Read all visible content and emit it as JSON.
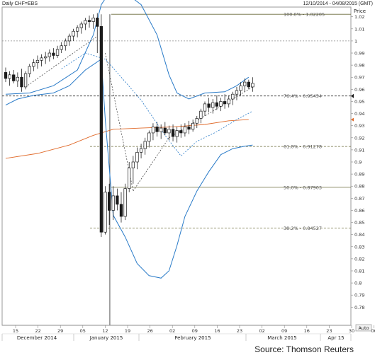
{
  "header": {
    "instrument": "Daily CHF=EBS",
    "range": "12/10/2014 - 04/08/2015 (GMT)"
  },
  "source": "Source: Thomson Reuters",
  "chart_data": {
    "type": "candlestick",
    "ylabel": "Price",
    "ylim": [
      0.765,
      1.028
    ],
    "y_ticks": [
      1.02,
      1.01,
      1.0,
      0.99,
      0.98,
      0.97,
      0.96,
      0.95,
      0.94,
      0.93,
      0.92,
      0.91,
      0.9,
      0.89,
      0.88,
      0.87,
      0.86,
      0.85,
      0.84,
      0.83,
      0.82,
      0.81,
      0.8,
      0.79,
      0.78
    ],
    "y_tick_labels": [
      "1.02",
      "1.01",
      "1",
      "0.99",
      "0.98",
      "0.97",
      "0.96",
      "0.95",
      "0.94",
      "0.93",
      "0.92",
      "0.91",
      "0.9",
      "0.89",
      "0.88",
      "0.87",
      "0.86",
      "0.85",
      "0.84",
      "0.83",
      "0.82",
      "0.81",
      "0.8",
      "0.79",
      "0.78"
    ],
    "day_ticks": [
      "15",
      "22",
      "29",
      "05",
      "12",
      "19",
      "26",
      "02",
      "09",
      "16",
      "23",
      "02",
      "09",
      "16",
      "23",
      "30",
      "06"
    ],
    "months": [
      "December 2014",
      "January 2015",
      "February 2015",
      "March 2015",
      "Apr 15"
    ],
    "auto_label": "Auto",
    "fib_levels": [
      {
        "label": "100.0% - 1.02205",
        "value": 1.02205
      },
      {
        "label": "76.4% - 0.95454",
        "value": 0.95454
      },
      {
        "label": "61.8% - 0.91278",
        "value": 0.91278
      },
      {
        "label": "50.0% - 0.87903",
        "value": 0.87903
      },
      {
        "label": "38.2% - 0.84527",
        "value": 0.84527
      }
    ],
    "dotted_reference": {
      "value": 1.0
    },
    "current_price": {
      "value": 0.9545
    },
    "ohlc": [
      {
        "o": 0.974,
        "h": 0.978,
        "l": 0.966,
        "c": 0.969
      },
      {
        "o": 0.969,
        "h": 0.975,
        "l": 0.963,
        "c": 0.972
      },
      {
        "o": 0.972,
        "h": 0.976,
        "l": 0.965,
        "c": 0.967
      },
      {
        "o": 0.967,
        "h": 0.974,
        "l": 0.962,
        "c": 0.97
      },
      {
        "o": 0.97,
        "h": 0.977,
        "l": 0.958,
        "c": 0.962
      },
      {
        "o": 0.962,
        "h": 0.975,
        "l": 0.96,
        "c": 0.973
      },
      {
        "o": 0.973,
        "h": 0.981,
        "l": 0.97,
        "c": 0.979
      },
      {
        "o": 0.979,
        "h": 0.985,
        "l": 0.975,
        "c": 0.982
      },
      {
        "o": 0.982,
        "h": 0.988,
        "l": 0.977,
        "c": 0.984
      },
      {
        "o": 0.984,
        "h": 0.989,
        "l": 0.979,
        "c": 0.986
      },
      {
        "o": 0.986,
        "h": 0.991,
        "l": 0.981,
        "c": 0.987
      },
      {
        "o": 0.987,
        "h": 0.993,
        "l": 0.983,
        "c": 0.99
      },
      {
        "o": 0.99,
        "h": 0.994,
        "l": 0.985,
        "c": 0.988
      },
      {
        "o": 0.988,
        "h": 0.996,
        "l": 0.986,
        "c": 0.993
      },
      {
        "o": 0.993,
        "h": 0.999,
        "l": 0.99,
        "c": 0.996
      },
      {
        "o": 0.996,
        "h": 1.002,
        "l": 0.992,
        "c": 1.0
      },
      {
        "o": 1.0,
        "h": 1.006,
        "l": 0.996,
        "c": 1.004
      },
      {
        "o": 1.004,
        "h": 1.01,
        "l": 1.0,
        "c": 1.008
      },
      {
        "o": 1.008,
        "h": 1.013,
        "l": 1.003,
        "c": 1.011
      },
      {
        "o": 1.011,
        "h": 1.016,
        "l": 1.006,
        "c": 1.014
      },
      {
        "o": 1.014,
        "h": 1.019,
        "l": 1.009,
        "c": 1.017
      },
      {
        "o": 1.017,
        "h": 1.021,
        "l": 1.011,
        "c": 1.016
      },
      {
        "o": 1.016,
        "h": 1.022,
        "l": 1.01,
        "c": 1.019
      },
      {
        "o": 1.019,
        "h": 1.023,
        "l": 0.99,
        "c": 1.012
      },
      {
        "o": 1.012,
        "h": 1.022,
        "l": 0.838,
        "c": 0.842
      },
      {
        "o": 0.842,
        "h": 0.88,
        "l": 0.84,
        "c": 0.875
      },
      {
        "o": 0.875,
        "h": 0.882,
        "l": 0.848,
        "c": 0.86
      },
      {
        "o": 0.86,
        "h": 0.88,
        "l": 0.852,
        "c": 0.872
      },
      {
        "o": 0.872,
        "h": 0.878,
        "l": 0.86,
        "c": 0.865
      },
      {
        "o": 0.865,
        "h": 0.875,
        "l": 0.85,
        "c": 0.855
      },
      {
        "o": 0.855,
        "h": 0.882,
        "l": 0.852,
        "c": 0.878
      },
      {
        "o": 0.878,
        "h": 0.9,
        "l": 0.875,
        "c": 0.895
      },
      {
        "o": 0.895,
        "h": 0.905,
        "l": 0.882,
        "c": 0.9
      },
      {
        "o": 0.9,
        "h": 0.912,
        "l": 0.894,
        "c": 0.908
      },
      {
        "o": 0.908,
        "h": 0.915,
        "l": 0.903,
        "c": 0.911
      },
      {
        "o": 0.911,
        "h": 0.92,
        "l": 0.906,
        "c": 0.917
      },
      {
        "o": 0.917,
        "h": 0.926,
        "l": 0.912,
        "c": 0.924
      },
      {
        "o": 0.924,
        "h": 0.932,
        "l": 0.918,
        "c": 0.929
      },
      {
        "o": 0.929,
        "h": 0.933,
        "l": 0.921,
        "c": 0.925
      },
      {
        "o": 0.925,
        "h": 0.931,
        "l": 0.919,
        "c": 0.928
      },
      {
        "o": 0.928,
        "h": 0.933,
        "l": 0.922,
        "c": 0.924
      },
      {
        "o": 0.924,
        "h": 0.93,
        "l": 0.918,
        "c": 0.927
      },
      {
        "o": 0.927,
        "h": 0.931,
        "l": 0.917,
        "c": 0.921
      },
      {
        "o": 0.921,
        "h": 0.929,
        "l": 0.916,
        "c": 0.926
      },
      {
        "o": 0.926,
        "h": 0.931,
        "l": 0.92,
        "c": 0.924
      },
      {
        "o": 0.924,
        "h": 0.932,
        "l": 0.921,
        "c": 0.929
      },
      {
        "o": 0.929,
        "h": 0.934,
        "l": 0.923,
        "c": 0.927
      },
      {
        "o": 0.927,
        "h": 0.935,
        "l": 0.925,
        "c": 0.932
      },
      {
        "o": 0.932,
        "h": 0.938,
        "l": 0.928,
        "c": 0.936
      },
      {
        "o": 0.936,
        "h": 0.944,
        "l": 0.932,
        "c": 0.942
      },
      {
        "o": 0.942,
        "h": 0.95,
        "l": 0.938,
        "c": 0.948
      },
      {
        "o": 0.948,
        "h": 0.953,
        "l": 0.941,
        "c": 0.945
      },
      {
        "o": 0.945,
        "h": 0.952,
        "l": 0.94,
        "c": 0.949
      },
      {
        "o": 0.949,
        "h": 0.955,
        "l": 0.943,
        "c": 0.946
      },
      {
        "o": 0.946,
        "h": 0.953,
        "l": 0.942,
        "c": 0.95
      },
      {
        "o": 0.95,
        "h": 0.956,
        "l": 0.944,
        "c": 0.948
      },
      {
        "o": 0.948,
        "h": 0.955,
        "l": 0.945,
        "c": 0.952
      },
      {
        "o": 0.952,
        "h": 0.958,
        "l": 0.947,
        "c": 0.956
      },
      {
        "o": 0.956,
        "h": 0.962,
        "l": 0.951,
        "c": 0.959
      },
      {
        "o": 0.959,
        "h": 0.966,
        "l": 0.955,
        "c": 0.963
      },
      {
        "o": 0.963,
        "h": 0.969,
        "l": 0.958,
        "c": 0.966
      },
      {
        "o": 0.966,
        "h": 0.968,
        "l": 0.96,
        "c": 0.962
      },
      {
        "o": 0.962,
        "h": 0.97,
        "l": 0.958,
        "c": 0.965
      }
    ],
    "upper_band": [
      {
        "i": 0,
        "v": 0.956
      },
      {
        "i": 6,
        "v": 0.957
      },
      {
        "i": 12,
        "v": 0.963
      },
      {
        "i": 18,
        "v": 0.976
      },
      {
        "i": 22,
        "v": 1.005
      },
      {
        "i": 24,
        "v": 1.03
      },
      {
        "i": 26,
        "v": 1.04
      },
      {
        "i": 30,
        "v": 1.04
      },
      {
        "i": 34,
        "v": 1.03
      },
      {
        "i": 38,
        "v": 1.005
      },
      {
        "i": 41,
        "v": 0.972
      },
      {
        "i": 43,
        "v": 0.957
      },
      {
        "i": 46,
        "v": 0.952
      },
      {
        "i": 50,
        "v": 0.957
      },
      {
        "i": 55,
        "v": 0.958
      },
      {
        "i": 58,
        "v": 0.963
      },
      {
        "i": 61,
        "v": 0.97
      }
    ],
    "lower_band": [
      {
        "i": 0,
        "v": 0.947
      },
      {
        "i": 3,
        "v": 0.952
      },
      {
        "i": 7,
        "v": 0.955
      },
      {
        "i": 12,
        "v": 0.957
      },
      {
        "i": 16,
        "v": 0.963
      },
      {
        "i": 20,
        "v": 0.976
      },
      {
        "i": 24,
        "v": 0.985
      },
      {
        "i": 25,
        "v": 0.935
      },
      {
        "i": 27,
        "v": 0.856
      },
      {
        "i": 30,
        "v": 0.838
      },
      {
        "i": 33,
        "v": 0.816
      },
      {
        "i": 36,
        "v": 0.806
      },
      {
        "i": 39,
        "v": 0.804
      },
      {
        "i": 41,
        "v": 0.81
      },
      {
        "i": 43,
        "v": 0.831
      },
      {
        "i": 45,
        "v": 0.855
      },
      {
        "i": 48,
        "v": 0.876
      },
      {
        "i": 51,
        "v": 0.892
      },
      {
        "i": 54,
        "v": 0.906
      },
      {
        "i": 57,
        "v": 0.911
      },
      {
        "i": 60,
        "v": 0.913
      },
      {
        "i": 62,
        "v": 0.914
      }
    ],
    "middle_band": [
      {
        "i": 14,
        "v": 0.977
      },
      {
        "i": 20,
        "v": 0.99
      },
      {
        "i": 25,
        "v": 0.985
      },
      {
        "i": 29,
        "v": 0.97
      },
      {
        "i": 34,
        "v": 0.951
      },
      {
        "i": 40,
        "v": 0.922
      },
      {
        "i": 44,
        "v": 0.905
      },
      {
        "i": 48,
        "v": 0.917
      },
      {
        "i": 53,
        "v": 0.925
      },
      {
        "i": 58,
        "v": 0.935
      },
      {
        "i": 62,
        "v": 0.942
      }
    ],
    "moving_average": [
      {
        "i": 0,
        "v": 0.903
      },
      {
        "i": 8,
        "v": 0.907
      },
      {
        "i": 16,
        "v": 0.914
      },
      {
        "i": 22,
        "v": 0.922
      },
      {
        "i": 27,
        "v": 0.927
      },
      {
        "i": 34,
        "v": 0.928
      },
      {
        "i": 42,
        "v": 0.929
      },
      {
        "i": 50,
        "v": 0.931
      },
      {
        "i": 56,
        "v": 0.934
      },
      {
        "i": 61,
        "v": 0.935
      }
    ],
    "trend_lines": [
      {
        "i1": 5,
        "v1": 0.962,
        "i2": 23,
        "v2": 1.004
      },
      {
        "i1": 25,
        "v1": 0.99,
        "i2": 32,
        "v2": 0.876
      },
      {
        "i1": 32,
        "v1": 0.876,
        "i2": 41,
        "v2": 0.92
      },
      {
        "i1": 41,
        "v1": 0.92,
        "i2": 62,
        "v2": 0.962
      }
    ]
  }
}
